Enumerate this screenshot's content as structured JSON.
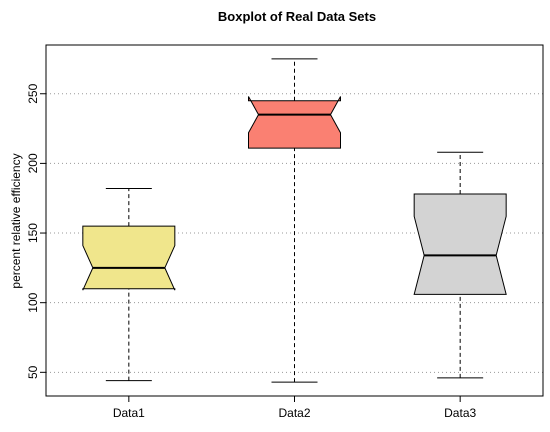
{
  "chart_data": {
    "type": "boxplot",
    "title": "Boxplot of Real Data Sets",
    "xlabel": "",
    "ylabel": "percent relative efficiency",
    "ylim": [
      33,
      285
    ],
    "yticks": [
      50,
      100,
      150,
      200,
      250
    ],
    "grid": "horizontal dotted at y ticks",
    "notched": true,
    "categories": [
      "Data1",
      "Data2",
      "Data3"
    ],
    "boxes": [
      {
        "name": "Data1",
        "min": 44,
        "q1": 110,
        "median": 125,
        "q3": 155,
        "max": 182,
        "notch_low": 109,
        "notch_high": 141,
        "color": "#f0e68c"
      },
      {
        "name": "Data2",
        "min": 43,
        "q1": 211,
        "median": 235,
        "q3": 245,
        "max": 275,
        "notch_low": 222,
        "notch_high": 248,
        "color": "#fa8072"
      },
      {
        "name": "Data3",
        "min": 46,
        "q1": 106,
        "median": 134,
        "q3": 178,
        "max": 208,
        "notch_low": 106,
        "notch_high": 162,
        "color": "#d3d3d3"
      }
    ]
  }
}
